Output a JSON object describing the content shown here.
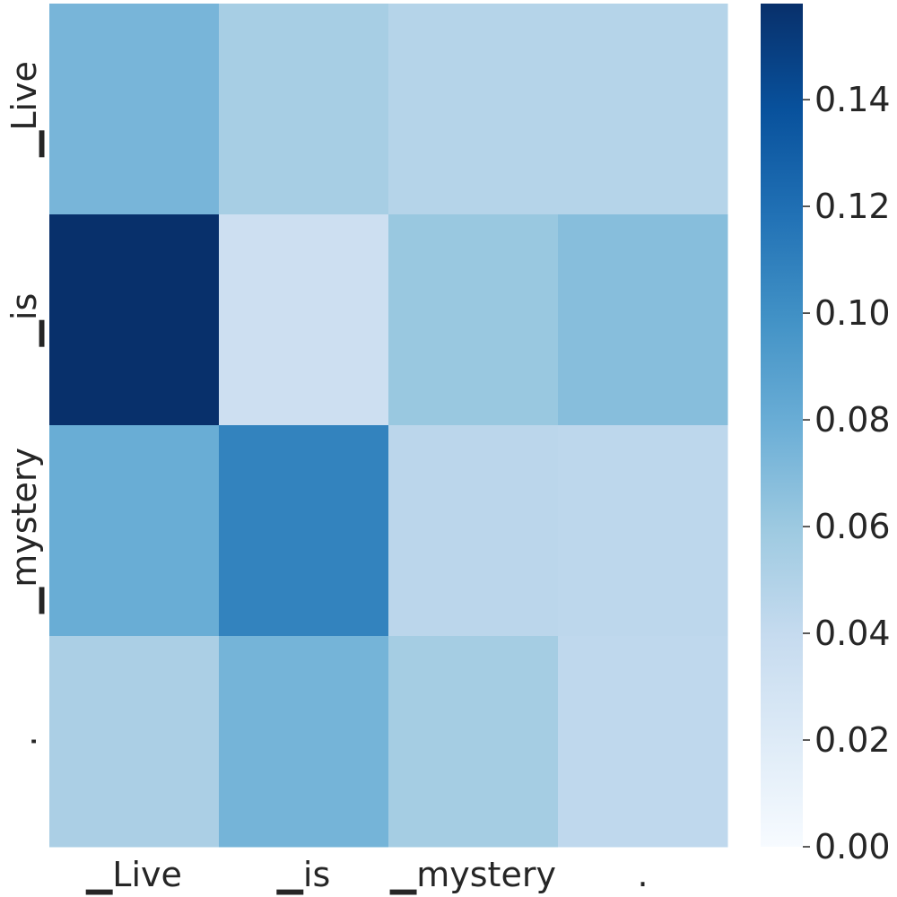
{
  "chart_data": {
    "type": "heatmap",
    "title": "",
    "xlabel": "",
    "ylabel": "",
    "x_categories": [
      "▁Live",
      "▁is",
      "▁mystery",
      "."
    ],
    "y_categories": [
      "▁Live",
      "▁is",
      "▁mystery",
      "."
    ],
    "values": [
      [
        0.074,
        0.055,
        0.048,
        0.048
      ],
      [
        0.158,
        0.034,
        0.061,
        0.068
      ],
      [
        0.08,
        0.108,
        0.045,
        0.044
      ],
      [
        0.053,
        0.075,
        0.056,
        0.043
      ]
    ],
    "colorbar": {
      "min": 0.0,
      "max": 0.158,
      "ticks": [
        "0.00",
        "0.02",
        "0.04",
        "0.06",
        "0.08",
        "0.10",
        "0.12",
        "0.14"
      ],
      "tick_values": [
        0.0,
        0.02,
        0.04,
        0.06,
        0.08,
        0.1,
        0.12,
        0.14
      ]
    },
    "colormap": "Blues",
    "colormap_stops": [
      "#f7fbff",
      "#deebf7",
      "#c6dbef",
      "#9ecae1",
      "#6baed6",
      "#4292c6",
      "#2171b5",
      "#08519c",
      "#08306b"
    ],
    "text_color": "#262626"
  }
}
